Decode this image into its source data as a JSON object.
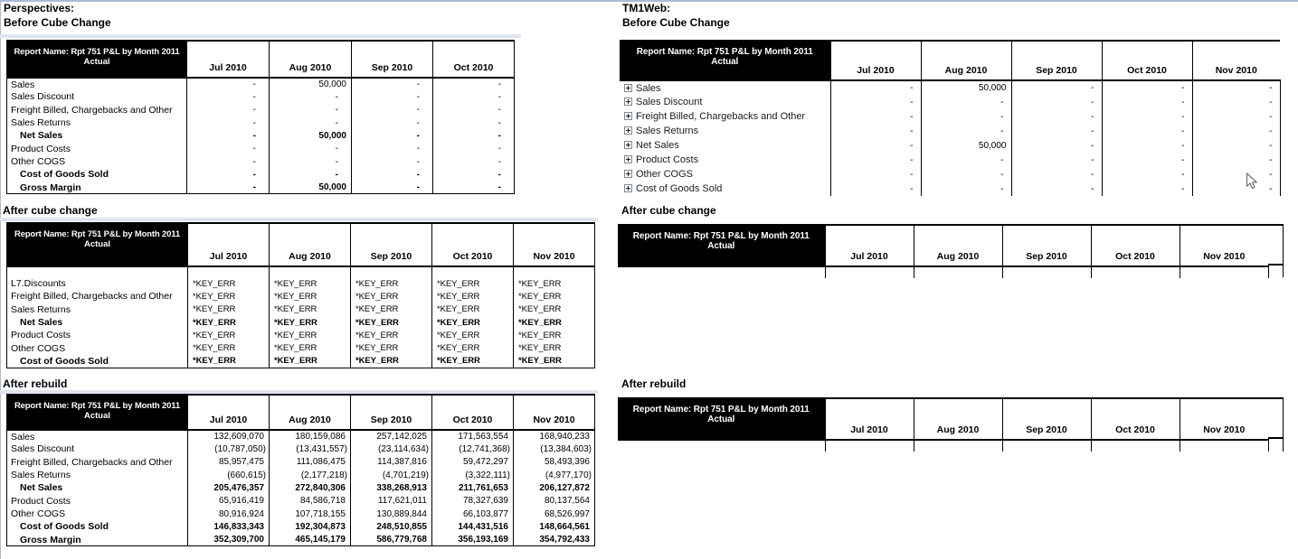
{
  "colors": {
    "window_edge": "#a9bcd7",
    "separator_band": "#dfe5ee",
    "header_bg": "#000000",
    "header_fg": "#ffffff"
  },
  "sections": {
    "left_app_title": "Perspectives:",
    "right_app_title": "TM1Web:",
    "left_before_label": "Before Cube Change",
    "right_before_label": "Before Cube Change",
    "left_after_change_label": "After cube change",
    "right_after_change_label": "After cube change",
    "left_after_rebuild_label": "After rebuild",
    "right_after_rebuild_label": "After rebuild"
  },
  "report": {
    "title_left_line1": "Report Name:  Rpt 751 P&L by Month 2011",
    "title_right_line1": "Report Name: Rpt 751 P&L by Month 2011",
    "title_line2": "Actual"
  },
  "tables": {
    "persp_before": {
      "columns": [
        "Jul 2010",
        "Aug 2010",
        "Sep 2010",
        "Oct 2010"
      ],
      "rows": [
        {
          "label": "Sales",
          "values": [
            "-",
            "50,000",
            "-",
            "-"
          ]
        },
        {
          "label": "Sales Discount",
          "values": [
            "-",
            "-",
            "-",
            "-"
          ]
        },
        {
          "label": "Freight Billed, Chargebacks and Other",
          "values": [
            "-",
            "-",
            "-",
            "-"
          ]
        },
        {
          "label": "Sales Returns",
          "values": [
            "-",
            "-",
            "-",
            "-"
          ]
        },
        {
          "label": "Net Sales",
          "bold": true,
          "indent": true,
          "values": [
            "-",
            "50,000",
            "-",
            "-"
          ]
        },
        {
          "label": "Product Costs",
          "values": [
            "-",
            "-",
            "-",
            "-"
          ]
        },
        {
          "label": "Other COGS",
          "values": [
            "-",
            "-",
            "-",
            "-"
          ]
        },
        {
          "label": "Cost of Goods Sold",
          "bold": true,
          "indent": true,
          "values": [
            "-",
            "-",
            "-",
            "-"
          ]
        },
        {
          "label": "Gross Margin",
          "bold": true,
          "indent": true,
          "values": [
            "-",
            "50,000",
            "-",
            "-"
          ]
        }
      ]
    },
    "tm1_before": {
      "columns": [
        "Jul 2010",
        "Aug 2010",
        "Sep 2010",
        "Oct 2010",
        "Nov 2010"
      ],
      "rows": [
        {
          "label": "Sales",
          "expand": true,
          "values": [
            "-",
            "50,000",
            "-",
            "-",
            "-"
          ]
        },
        {
          "label": "Sales Discount",
          "expand": true,
          "values": [
            "-",
            "-",
            "-",
            "-",
            "-"
          ]
        },
        {
          "label": "Freight Billed, Chargebacks and Other",
          "expand": true,
          "values": [
            "-",
            "-",
            "-",
            "-",
            "-"
          ]
        },
        {
          "label": "Sales Returns",
          "expand": true,
          "values": [
            "-",
            "-",
            "-",
            "-",
            "-"
          ]
        },
        {
          "label": "Net Sales",
          "expand": true,
          "values": [
            "-",
            "50,000",
            "-",
            "-",
            "-"
          ]
        },
        {
          "label": "Product Costs",
          "expand": true,
          "values": [
            "-",
            "-",
            "-",
            "-",
            "-"
          ]
        },
        {
          "label": "Other COGS",
          "expand": true,
          "values": [
            "-",
            "-",
            "-",
            "-",
            "-"
          ]
        },
        {
          "label": "Cost of Goods Sold",
          "expand": true,
          "values": [
            "-",
            "-",
            "-",
            "-",
            "-"
          ]
        }
      ]
    },
    "persp_after_change": {
      "columns": [
        "Jul 2010",
        "Aug 2010",
        "Sep 2010",
        "Oct 2010",
        "Nov 2010"
      ],
      "rows": [
        {
          "label": "",
          "values": [
            "",
            "",
            "",
            "",
            ""
          ]
        },
        {
          "label": "L7.Discounts",
          "values": [
            "*KEY_ERR",
            "*KEY_ERR",
            "*KEY_ERR",
            "*KEY_ERR",
            "*KEY_ERR"
          ]
        },
        {
          "label": "Freight Billed, Chargebacks and Other",
          "values": [
            "*KEY_ERR",
            "*KEY_ERR",
            "*KEY_ERR",
            "*KEY_ERR",
            "*KEY_ERR"
          ]
        },
        {
          "label": "Sales Returns",
          "values": [
            "*KEY_ERR",
            "*KEY_ERR",
            "*KEY_ERR",
            "*KEY_ERR",
            "*KEY_ERR"
          ]
        },
        {
          "label": "Net Sales",
          "bold": true,
          "indent": true,
          "values": [
            "*KEY_ERR",
            "*KEY_ERR",
            "*KEY_ERR",
            "*KEY_ERR",
            "*KEY_ERR"
          ]
        },
        {
          "label": "Product Costs",
          "values": [
            "*KEY_ERR",
            "*KEY_ERR",
            "*KEY_ERR",
            "*KEY_ERR",
            "*KEY_ERR"
          ]
        },
        {
          "label": "Other COGS",
          "values": [
            "*KEY_ERR",
            "*KEY_ERR",
            "*KEY_ERR",
            "*KEY_ERR",
            "*KEY_ERR"
          ]
        },
        {
          "label": "Cost of Goods Sold",
          "bold": true,
          "indent": true,
          "values": [
            "*KEY_ERR",
            "*KEY_ERR",
            "*KEY_ERR",
            "*KEY_ERR",
            "*KEY_ERR"
          ]
        }
      ]
    },
    "tm1_after_change": {
      "columns": [
        "Jul 2010",
        "Aug 2010",
        "Sep 2010",
        "Oct 2010",
        "Nov 2010"
      ],
      "stub": true
    },
    "persp_rebuild": {
      "columns": [
        "Jul 2010",
        "Aug 2010",
        "Sep 2010",
        "Oct 2010",
        "Nov 2010"
      ],
      "rows": [
        {
          "label": "Sales",
          "values": [
            "132,609,070",
            "180,159,086",
            "257,142,025",
            "171,563,554",
            "168,940,233"
          ]
        },
        {
          "label": "Sales Discount",
          "values": [
            "(10,787,050)",
            "(13,431,557)",
            "(23,114,634)",
            "(12,741,368)",
            "(13,384,603)"
          ]
        },
        {
          "label": "Freight Billed, Chargebacks and Other",
          "values": [
            "85,957,475",
            "111,086,475",
            "114,387,816",
            "59,472,297",
            "58,493,396"
          ]
        },
        {
          "label": "Sales Returns",
          "values": [
            "(660,615)",
            "(2,177,218)",
            "(4,701,219)",
            "(3,322,111)",
            "(4,977,170)"
          ]
        },
        {
          "label": "Net Sales",
          "bold": true,
          "indent": true,
          "values": [
            "205,476,357",
            "272,840,306",
            "338,268,913",
            "211,761,653",
            "206,127,872"
          ]
        },
        {
          "label": "Product Costs",
          "values": [
            "65,916,419",
            "84,586,718",
            "117,621,011",
            "78,327,639",
            "80,137,564"
          ]
        },
        {
          "label": "Other COGS",
          "values": [
            "80,916,924",
            "107,718,155",
            "130,889,844",
            "66,103,877",
            "68,526,997"
          ]
        },
        {
          "label": "Cost of Goods Sold",
          "bold": true,
          "indent": true,
          "values": [
            "146,833,343",
            "192,304,873",
            "248,510,855",
            "144,431,516",
            "148,664,561"
          ]
        },
        {
          "label": "Gross Margin",
          "bold": true,
          "indent": true,
          "values": [
            "352,309,700",
            "465,145,179",
            "586,779,768",
            "356,193,169",
            "354,792,433"
          ]
        }
      ]
    },
    "tm1_rebuild": {
      "columns": [
        "Jul 2010",
        "Aug 2010",
        "Sep 2010",
        "Oct 2010",
        "Nov 2010"
      ],
      "stub": true
    }
  }
}
